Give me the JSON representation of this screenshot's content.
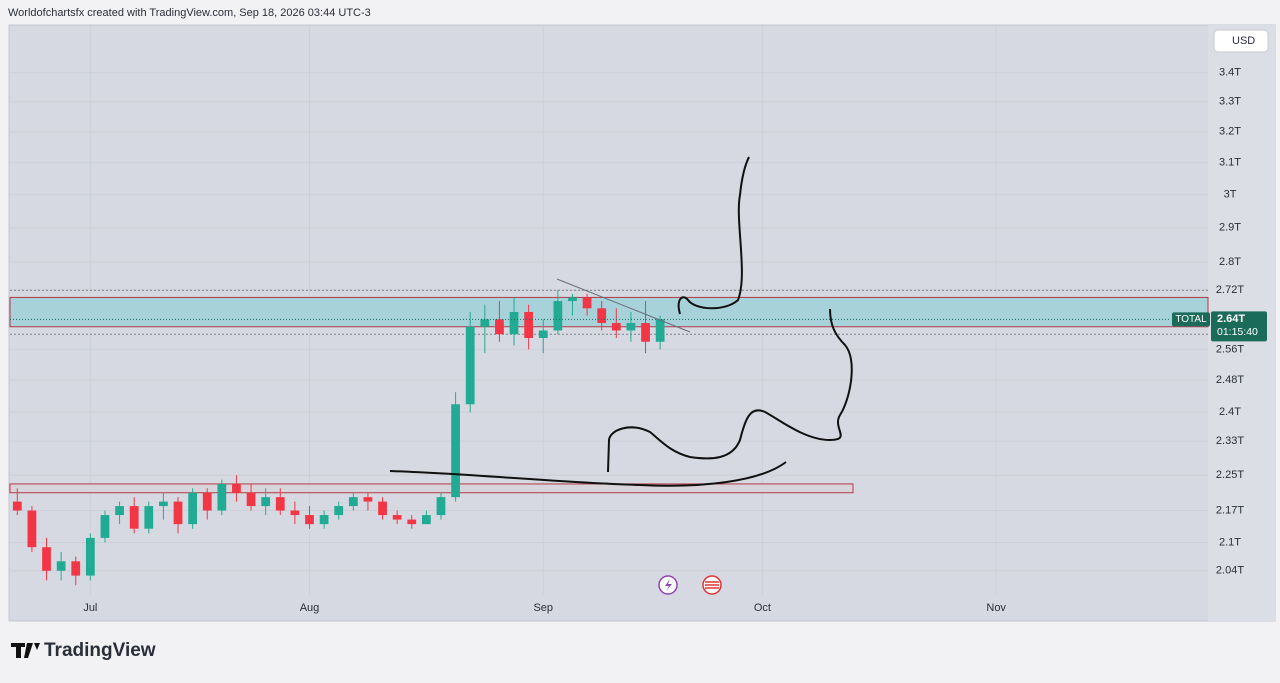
{
  "header": {
    "attribution": "Worldofchartsfx created with TradingView.com, Sep 18, 2026 03:44 UTC-3"
  },
  "footer": {
    "brand": "TradingView"
  },
  "chart_data": {
    "type": "candlestick",
    "currency": "USD",
    "log_scale": true,
    "grid": true,
    "up_color": "#22ab94",
    "down_color": "#f23645",
    "ylim": [
      1.99,
      3.57
    ],
    "yticks": [
      {
        "value": 3.4,
        "label": "3.4T"
      },
      {
        "value": 3.3,
        "label": "3.3T"
      },
      {
        "value": 3.2,
        "label": "3.2T"
      },
      {
        "value": 3.1,
        "label": "3.1T"
      },
      {
        "value": 3,
        "label": "3T"
      },
      {
        "value": 2.9,
        "label": "2.9T"
      },
      {
        "value": 2.8,
        "label": "2.8T"
      },
      {
        "value": 2.72,
        "label": "2.72T"
      },
      {
        "value": 2.56,
        "label": "2.56T"
      },
      {
        "value": 2.48,
        "label": "2.48T"
      },
      {
        "value": 2.4,
        "label": "2.4T"
      },
      {
        "value": 2.33,
        "label": "2.33T"
      },
      {
        "value": 2.25,
        "label": "2.25T"
      },
      {
        "value": 2.17,
        "label": "2.17T"
      },
      {
        "value": 2.1,
        "label": "2.1T"
      },
      {
        "value": 2.04,
        "label": "2.04T"
      }
    ],
    "categories": [
      null,
      null,
      null,
      null,
      null,
      "Jul",
      null,
      null,
      null,
      null,
      null,
      null,
      null,
      null,
      null,
      null,
      null,
      null,
      null,
      null,
      "Aug",
      null,
      null,
      null,
      null,
      null,
      null,
      null,
      null,
      null,
      null,
      null,
      null,
      null,
      null,
      null,
      "Sep",
      null,
      null,
      null,
      null,
      null,
      null,
      null,
      null,
      null,
      null,
      null,
      null,
      null,
      null,
      "Oct",
      null,
      null,
      null,
      null,
      null,
      null,
      null,
      null,
      null,
      null,
      null,
      null,
      null,
      null,
      null,
      "Nov",
      null,
      null,
      null,
      null,
      null,
      null,
      null,
      null,
      null,
      null,
      null,
      null,
      null,
      null
    ],
    "open": [
      2.19,
      2.17,
      2.09,
      2.04,
      2.06,
      2.03,
      2.11,
      2.16,
      2.18,
      2.13,
      2.18,
      2.19,
      2.14,
      2.21,
      2.17,
      2.23,
      2.21,
      2.18,
      2.2,
      2.17,
      2.16,
      2.14,
      2.16,
      2.18,
      2.2,
      2.19,
      2.16,
      2.15,
      2.14,
      2.16,
      2.2,
      2.42,
      2.62,
      2.64,
      2.6,
      2.66,
      2.59,
      2.61,
      2.69,
      2.7,
      2.67,
      2.63,
      2.61,
      2.63,
      2.58,
      null,
      null,
      null,
      null,
      null,
      null,
      null,
      null,
      null,
      null,
      null,
      null,
      null,
      null,
      null,
      null,
      null,
      null,
      null,
      null,
      null,
      null,
      null,
      null,
      null,
      null,
      null,
      null,
      null,
      null,
      null,
      null,
      null,
      null,
      null,
      null,
      null
    ],
    "high": [
      2.22,
      2.18,
      2.11,
      2.08,
      2.07,
      2.12,
      2.17,
      2.19,
      2.2,
      2.19,
      2.21,
      2.2,
      2.22,
      2.22,
      2.24,
      2.25,
      2.23,
      2.22,
      2.22,
      2.19,
      2.18,
      2.17,
      2.19,
      2.21,
      2.21,
      2.2,
      2.17,
      2.16,
      2.17,
      2.21,
      2.45,
      2.66,
      2.68,
      2.69,
      2.7,
      2.68,
      2.64,
      2.72,
      2.71,
      2.71,
      2.69,
      2.67,
      2.66,
      2.69,
      2.65,
      null,
      null,
      null,
      null,
      null,
      null,
      null,
      null,
      null,
      null,
      null,
      null,
      null,
      null,
      null,
      null,
      null,
      null,
      null,
      null,
      null,
      null,
      null,
      null,
      null,
      null,
      null,
      null,
      null,
      null,
      null,
      null,
      null,
      null,
      null,
      null,
      null
    ],
    "low": [
      2.16,
      2.08,
      2.02,
      2.02,
      2.01,
      2.02,
      2.1,
      2.14,
      2.12,
      2.12,
      2.15,
      2.12,
      2.13,
      2.15,
      2.16,
      2.19,
      2.17,
      2.16,
      2.16,
      2.14,
      2.13,
      2.13,
      2.15,
      2.17,
      2.17,
      2.15,
      2.14,
      2.13,
      2.14,
      2.15,
      2.19,
      2.4,
      2.55,
      2.58,
      2.57,
      2.56,
      2.55,
      2.6,
      2.65,
      2.65,
      2.61,
      2.59,
      2.58,
      2.55,
      2.56,
      null,
      null,
      null,
      null,
      null,
      null,
      null,
      null,
      null,
      null,
      null,
      null,
      null,
      null,
      null,
      null,
      null,
      null,
      null,
      null,
      null,
      null,
      null,
      null,
      null,
      null,
      null,
      null,
      null,
      null,
      null,
      null,
      null,
      null,
      null,
      null,
      null
    ],
    "close": [
      2.17,
      2.09,
      2.04,
      2.06,
      2.03,
      2.11,
      2.16,
      2.18,
      2.13,
      2.18,
      2.19,
      2.14,
      2.21,
      2.17,
      2.23,
      2.21,
      2.18,
      2.2,
      2.17,
      2.16,
      2.14,
      2.16,
      2.18,
      2.2,
      2.19,
      2.16,
      2.15,
      2.14,
      2.16,
      2.2,
      2.42,
      2.62,
      2.64,
      2.6,
      2.66,
      2.59,
      2.61,
      2.69,
      2.7,
      2.67,
      2.63,
      2.61,
      2.63,
      2.58,
      2.64,
      null,
      null,
      null,
      null,
      null,
      null,
      null,
      null,
      null,
      null,
      null,
      null,
      null,
      null,
      null,
      null,
      null,
      null,
      null,
      null,
      null,
      null,
      null,
      null,
      null,
      null,
      null,
      null,
      null,
      null,
      null,
      null,
      null,
      null,
      null,
      null,
      null
    ],
    "zones": [
      {
        "low": 2.62,
        "high": 2.7,
        "fill": "#a7d2da",
        "border": "#b23a44"
      },
      {
        "low": 2.21,
        "high": 2.23,
        "fill": "#d7d4dc",
        "border": "#b23a44"
      }
    ],
    "levels": [
      2.72,
      2.6
    ],
    "last_price": {
      "label": "TOTAL",
      "value": 2.64,
      "value_label": "2.64T",
      "countdown": "01:15:40",
      "color": "#1b6b5a"
    }
  }
}
